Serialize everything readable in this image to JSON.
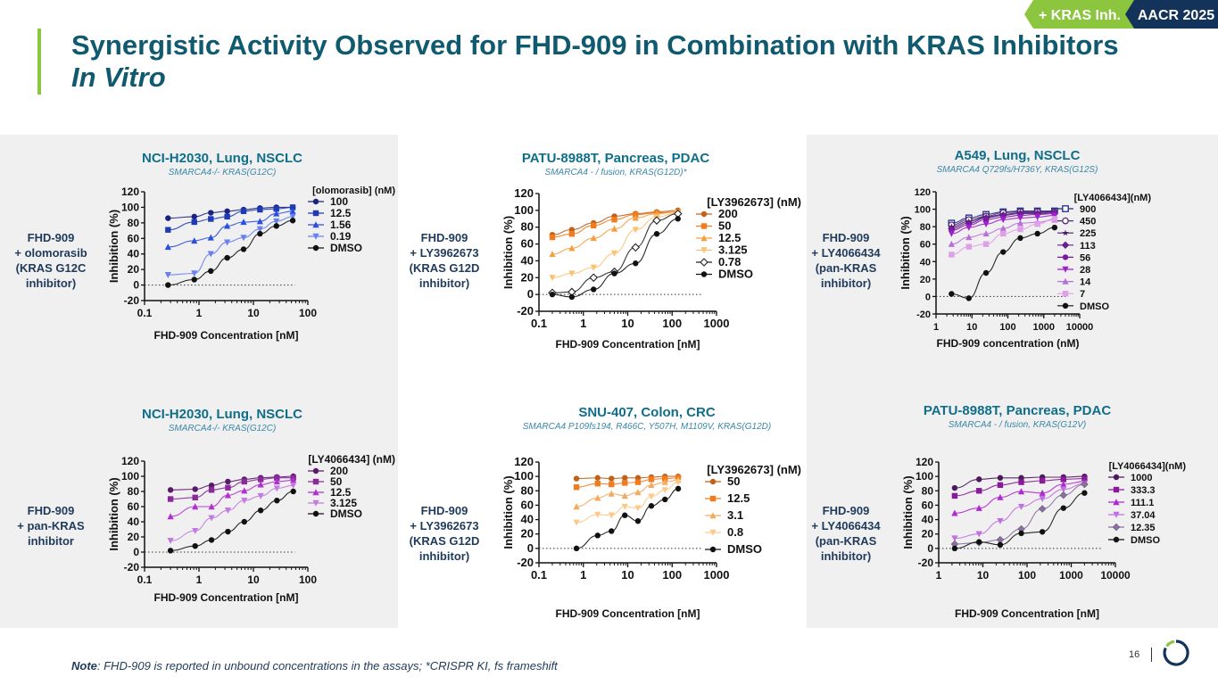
{
  "header": {
    "tag_kras": "+ KRAS Inh.",
    "tag_event": "AACR 2025",
    "title_main": "Synergistic Activity Observed for FHD-909 in Combination with KRAS Inhibitors ",
    "title_italic": "In Vitro",
    "colors": {
      "title": "#0f5a6e",
      "green": "#8cc63f",
      "navy": "#13335a"
    }
  },
  "footer": {
    "note_label": "Note",
    "note_text": ": FHD-909 is reported in unbound concentrations in the assays; *CRISPR KI, fs frameshift",
    "page_number": "16"
  },
  "side_labels": [
    "FHD-909\n+ olomorasib\n(KRAS G12C\ninhibitor)",
    "FHD-909\n+ LY3962673\n(KRAS G12D\ninhibitor)",
    "FHD-909\n+ LY4066434\n(pan-KRAS\ninhibitor)",
    "FHD-909\n+ pan-KRAS\ninhibitor",
    "FHD-909\n+ LY3962673\n(KRAS G12D\ninhibitor)",
    "FHD-909\n+ LY4066434\n(pan-KRAS\ninhibitor)"
  ],
  "chart_data": [
    {
      "type": "scatter",
      "title": "NCI-H2030, Lung, NSCLC",
      "subtitle": "SMARCA4-/- KRAS(G12C)",
      "xlabel": "FHD-909 Concentration [nM]",
      "ylabel": "Inhibition (%)",
      "xscale": "log",
      "xlim": [
        0.1,
        100
      ],
      "ylim": [
        -20,
        120
      ],
      "xticks": [
        "0.1",
        "1",
        "10",
        "100"
      ],
      "yticks": [
        -20,
        0,
        20,
        40,
        60,
        80,
        100,
        120
      ],
      "legend_title": "[olomorasib] (nM)",
      "legend_position": "right",
      "x": [
        0.27,
        0.82,
        1.65,
        3.3,
        6.6,
        13.2,
        26.4,
        52.8
      ],
      "series": [
        {
          "name": "100",
          "color": "#1a237e",
          "marker": "circle",
          "values": [
            86,
            88,
            93,
            95,
            97,
            99,
            100,
            100
          ]
        },
        {
          "name": "12.5",
          "color": "#1e3bb3",
          "marker": "square",
          "values": [
            71,
            81,
            85,
            88,
            95,
            97,
            98,
            100
          ]
        },
        {
          "name": "1.56",
          "color": "#2a4fe0",
          "marker": "triangle",
          "values": [
            49,
            57,
            61,
            76,
            81,
            82,
            92,
            95
          ]
        },
        {
          "name": "0.19",
          "color": "#6a7ff0",
          "marker": "triangle-down",
          "values": [
            13,
            15,
            40,
            55,
            61,
            72,
            82,
            88
          ]
        },
        {
          "name": "DMSO",
          "color": "#111111",
          "marker": "circle",
          "values": [
            0,
            7,
            18,
            35,
            46,
            66,
            76,
            83
          ]
        }
      ]
    },
    {
      "type": "scatter",
      "title": "PATU-8988T, Pancreas, PDAC",
      "subtitle": "SMARCA4 - / fusion, KRAS(G12D)*",
      "xlabel": "FHD-909 Concentration [nM]",
      "ylabel": "Inhibition (%)",
      "xscale": "log",
      "xlim": [
        0.1,
        1000
      ],
      "ylim": [
        -20,
        120
      ],
      "xticks": [
        "0.1",
        "1",
        "10",
        "100",
        "1000"
      ],
      "yticks": [
        -20,
        0,
        20,
        40,
        60,
        80,
        100,
        120
      ],
      "legend_title": "[LY3962673] (nM)",
      "legend_position": "right",
      "x": [
        0.2,
        0.55,
        1.7,
        5,
        15,
        45,
        135
      ],
      "series": [
        {
          "name": "200",
          "color": "#c0611a",
          "marker": "circle",
          "values": [
            71,
            77,
            85,
            93,
            96,
            98,
            100
          ]
        },
        {
          "name": "50",
          "color": "#f07c20",
          "marker": "square",
          "values": [
            68,
            72,
            82,
            89,
            95,
            97,
            98
          ]
        },
        {
          "name": "12.5",
          "color": "#f5a040",
          "marker": "triangle",
          "values": [
            48,
            55,
            67,
            78,
            91,
            96,
            98
          ]
        },
        {
          "name": "3.125",
          "color": "#fcc274",
          "marker": "triangle-down",
          "values": [
            20,
            25,
            32,
            49,
            77,
            92,
            97
          ]
        },
        {
          "name": "0.78",
          "color": "#222222",
          "marker": "diamond-open",
          "values": [
            2,
            3,
            20,
            27,
            56,
            88,
            96
          ]
        },
        {
          "name": "DMSO",
          "color": "#111111",
          "marker": "circle",
          "values": [
            0,
            -3,
            6,
            25,
            37,
            72,
            90
          ]
        }
      ]
    },
    {
      "type": "scatter",
      "title": "A549, Lung, NSCLC",
      "subtitle": "SMARCA4 Q729fs/H736Y, KRAS(G12S)",
      "xlabel": "FHD-909 concentration (nM)",
      "ylabel": "Inhibition (%)",
      "xscale": "log",
      "xlim": [
        1,
        10000
      ],
      "ylim": [
        -20,
        120
      ],
      "xticks": [
        "1",
        "10",
        "100",
        "1000",
        "10000"
      ],
      "yticks": [
        -20,
        0,
        20,
        40,
        60,
        80,
        100,
        120
      ],
      "legend_title": "[LY4066434](nM)",
      "legend_position": "right",
      "x": [
        2.7,
        8.2,
        24.7,
        74,
        222,
        667,
        2000
      ],
      "series": [
        {
          "name": "900",
          "color": "#1e2a8a",
          "marker": "square-open",
          "values": [
            84,
            90,
            94,
            97,
            98,
            98,
            98
          ]
        },
        {
          "name": "450",
          "color": "#5a2a7a",
          "marker": "circle-open",
          "values": [
            82,
            88,
            92,
            96,
            97,
            97,
            97
          ]
        },
        {
          "name": "225",
          "color": "#4a1a6a",
          "marker": "star",
          "values": [
            80,
            86,
            91,
            94,
            96,
            96,
            97
          ]
        },
        {
          "name": "113",
          "color": "#6a1a9a",
          "marker": "diamond",
          "values": [
            78,
            84,
            90,
            93,
            95,
            95,
            96
          ]
        },
        {
          "name": "56",
          "color": "#7a1aa0",
          "marker": "circle",
          "values": [
            76,
            82,
            88,
            91,
            93,
            94,
            95
          ]
        },
        {
          "name": "28",
          "color": "#a020d0",
          "marker": "triangle-down",
          "values": [
            72,
            79,
            83,
            88,
            90,
            91,
            93
          ]
        },
        {
          "name": "14",
          "color": "#b870d8",
          "marker": "triangle",
          "values": [
            60,
            68,
            72,
            78,
            84,
            85,
            88
          ]
        },
        {
          "name": "7",
          "color": "#e0a0e8",
          "marker": "square",
          "values": [
            48,
            57,
            60,
            72,
            77,
            83,
            89
          ]
        },
        {
          "name": "DMSO",
          "color": "#111111",
          "marker": "circle",
          "values": [
            3,
            -2,
            27,
            51,
            67,
            72,
            79
          ]
        }
      ]
    },
    {
      "type": "scatter",
      "title": "NCI-H2030, Lung, NSCLC",
      "subtitle": "SMARCA4-/- KRAS(G12C)",
      "xlabel": "FHD-909 Concentration [nM]",
      "ylabel": "Inhibition (%)",
      "xscale": "log",
      "xlim": [
        0.1,
        100
      ],
      "ylim": [
        -20,
        120
      ],
      "xticks": [
        "0.1",
        "1",
        "10",
        "100"
      ],
      "yticks": [
        -20,
        0,
        20,
        40,
        60,
        80,
        100,
        120
      ],
      "legend_title": "[LY4066434] (nM)",
      "legend_position": "right",
      "x": [
        0.3,
        0.85,
        1.7,
        3.4,
        6.8,
        13.6,
        27,
        54
      ],
      "series": [
        {
          "name": "200",
          "color": "#5a1a6a",
          "marker": "circle",
          "values": [
            82,
            83,
            88,
            93,
            96,
            98,
            99,
            100
          ]
        },
        {
          "name": "50",
          "color": "#8a2a9a",
          "marker": "square",
          "values": [
            70,
            72,
            82,
            85,
            93,
            96,
            98,
            98
          ]
        },
        {
          "name": "12.5",
          "color": "#b030d0",
          "marker": "triangle",
          "values": [
            47,
            60,
            60,
            75,
            81,
            89,
            93,
            95
          ]
        },
        {
          "name": "3.125",
          "color": "#c27ae0",
          "marker": "triangle-down",
          "values": [
            15,
            28,
            45,
            55,
            68,
            74,
            84,
            88
          ]
        },
        {
          "name": "DMSO",
          "color": "#111111",
          "marker": "circle",
          "values": [
            2,
            8,
            16,
            27,
            40,
            55,
            68,
            80
          ]
        }
      ]
    },
    {
      "type": "scatter",
      "title": "SNU-407, Colon, CRC",
      "subtitle": "SMARCA4 P109fs194, R466C, Y507H, M1109V, KRAS(G12D)",
      "xlabel": "FHD-909 Concentration [nM]",
      "ylabel": "Inhibition (%)",
      "xscale": "log",
      "xlim": [
        0.1,
        1000
      ],
      "ylim": [
        -20,
        120
      ],
      "xticks": [
        "0.1",
        "1",
        "10",
        "100",
        "1000"
      ],
      "yticks": [
        -20,
        0,
        20,
        40,
        60,
        80,
        100,
        120
      ],
      "legend_title": "[LY3962673] (nM)",
      "legend_position": "right",
      "x": [
        0.7,
        2.1,
        4.3,
        8.6,
        17,
        34,
        69,
        137
      ],
      "series": [
        {
          "name": "50",
          "color": "#c0611a",
          "marker": "circle",
          "values": [
            97,
            98,
            97,
            98,
            98,
            99,
            100,
            100
          ]
        },
        {
          "name": "12.5",
          "color": "#f07c20",
          "marker": "square",
          "values": [
            85,
            90,
            89,
            91,
            92,
            96,
            97,
            98
          ]
        },
        {
          "name": "3.1",
          "color": "#f5a860",
          "marker": "triangle",
          "values": [
            58,
            70,
            76,
            73,
            78,
            88,
            92,
            95
          ]
        },
        {
          "name": "0.8",
          "color": "#fcc98a",
          "marker": "triangle-down",
          "values": [
            36,
            47,
            46,
            58,
            56,
            72,
            81,
            92
          ]
        },
        {
          "name": "DMSO",
          "color": "#111111",
          "marker": "circle",
          "values": [
            0,
            18,
            24,
            46,
            38,
            59,
            68,
            83
          ]
        }
      ]
    },
    {
      "type": "scatter",
      "title": "PATU-8988T, Pancreas, PDAC",
      "subtitle": "SMARCA4 - / fusion, KRAS(G12V)",
      "xlabel": "FHD-909 Concentration [nM]",
      "ylabel": "Inhibition (%)",
      "xscale": "log",
      "xlim": [
        1,
        10000
      ],
      "ylim": [
        -20,
        120
      ],
      "xticks": [
        "1",
        "10",
        "100",
        "1000",
        "10000"
      ],
      "yticks": [
        -20,
        0,
        20,
        40,
        60,
        80,
        100,
        120
      ],
      "legend_title": "[LY4066434](nM)",
      "legend_position": "right",
      "x": [
        2.3,
        8.2,
        24.7,
        74,
        222,
        667,
        2000
      ],
      "series": [
        {
          "name": "1000",
          "color": "#4a1a5a",
          "marker": "circle",
          "values": [
            84,
            96,
            98,
            98,
            99,
            99,
            100
          ]
        },
        {
          "name": "333.3",
          "color": "#8a1a9a",
          "marker": "square",
          "values": [
            73,
            80,
            88,
            92,
            94,
            96,
            97
          ]
        },
        {
          "name": "111.1",
          "color": "#b028d0",
          "marker": "triangle",
          "values": [
            49,
            56,
            71,
            79,
            77,
            89,
            93
          ]
        },
        {
          "name": "37.04",
          "color": "#c070e0",
          "marker": "triangle-down",
          "values": [
            14,
            20,
            38,
            58,
            69,
            82,
            90
          ]
        },
        {
          "name": "12.35",
          "color": "#8a70a0",
          "marker": "diamond",
          "values": [
            6,
            8,
            12,
            27,
            55,
            74,
            89
          ]
        },
        {
          "name": "DMSO",
          "color": "#111111",
          "marker": "circle",
          "values": [
            0,
            9,
            5,
            21,
            23,
            56,
            77
          ]
        }
      ]
    }
  ]
}
